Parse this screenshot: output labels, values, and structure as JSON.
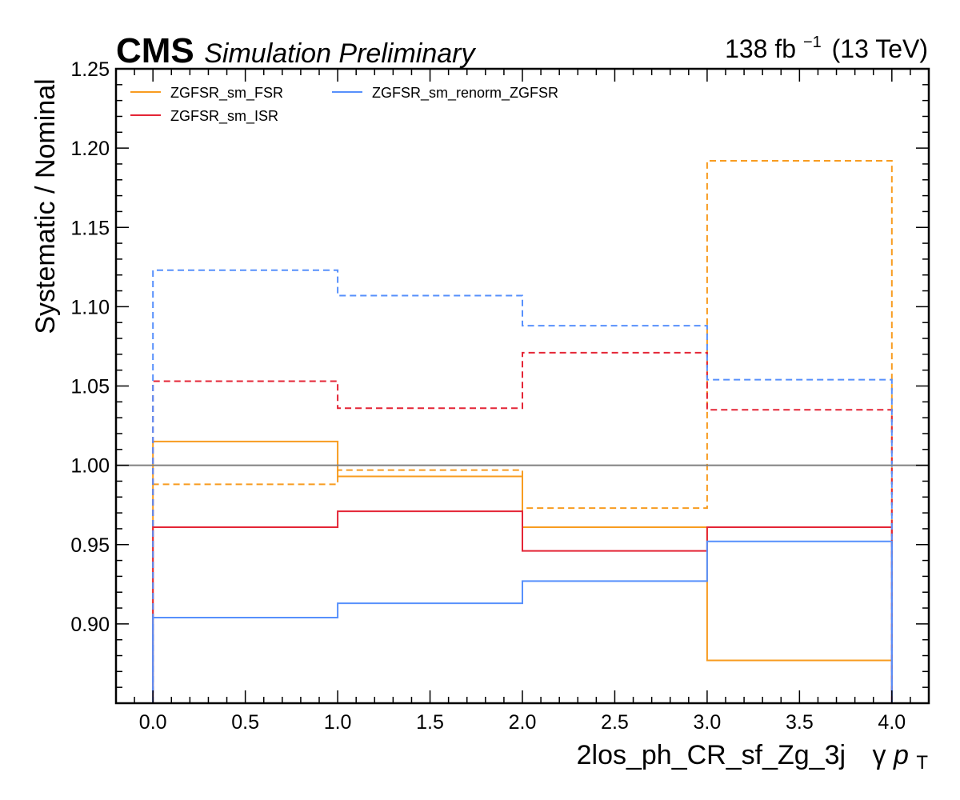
{
  "header": {
    "experiment": "CMS",
    "status": "Simulation Preliminary",
    "lumi_value": "138 fb",
    "lumi_exponent": "−1",
    "energy": "(13 TeV)"
  },
  "chart_data": {
    "type": "step",
    "title": "",
    "xlabel_main": "2los_ph_CR_sf_Zg_3j",
    "xlabel_var_prefix": "γ",
    "xlabel_var": "p",
    "xlabel_var_sub": "T",
    "ylabel": "Systematic / Nominal",
    "xlim": [
      -0.2,
      4.2
    ],
    "ylim": [
      0.85,
      1.25
    ],
    "xticks": [
      0.0,
      0.5,
      1.0,
      1.5,
      2.0,
      2.5,
      3.0,
      3.5,
      4.0
    ],
    "xtick_labels": [
      "0.0",
      "0.5",
      "1.0",
      "1.5",
      "2.0",
      "2.5",
      "3.0",
      "3.5",
      "4.0"
    ],
    "yticks": [
      0.9,
      0.95,
      1.0,
      1.05,
      1.1,
      1.15,
      1.2,
      1.25
    ],
    "ytick_labels": [
      "0.90",
      "0.95",
      "1.00",
      "1.05",
      "1.10",
      "1.15",
      "1.20",
      "1.25"
    ],
    "bin_edges": [
      0,
      1,
      2,
      3,
      4
    ],
    "reference_line": 1.0,
    "reference_color": "#808080",
    "legend_position": "top-left",
    "series": [
      {
        "name": "ZGFSR_sm_FSR",
        "color": "#f89c20",
        "variation": "up",
        "values": [
          0.988,
          0.997,
          0.973,
          1.192
        ]
      },
      {
        "name": "ZGFSR_sm_FSR",
        "color": "#f89c20",
        "variation": "down",
        "values": [
          1.015,
          0.993,
          0.961,
          0.877
        ]
      },
      {
        "name": "ZGFSR_sm_ISR",
        "color": "#e42536",
        "variation": "up",
        "values": [
          1.053,
          1.036,
          1.071,
          1.035
        ]
      },
      {
        "name": "ZGFSR_sm_ISR",
        "color": "#e42536",
        "variation": "down",
        "values": [
          0.961,
          0.971,
          0.946,
          0.961
        ]
      },
      {
        "name": "ZGFSR_sm_renorm_ZGFSR",
        "color": "#5790fc",
        "variation": "up",
        "values": [
          1.123,
          1.107,
          1.088,
          1.054
        ]
      },
      {
        "name": "ZGFSR_sm_renorm_ZGFSR",
        "color": "#5790fc",
        "variation": "down",
        "values": [
          0.904,
          0.913,
          0.927,
          0.952
        ]
      }
    ],
    "legend": [
      {
        "label": "ZGFSR_sm_FSR",
        "color": "#f89c20"
      },
      {
        "label": "ZGFSR_sm_renorm_ZGFSR",
        "color": "#5790fc"
      },
      {
        "label": "ZGFSR_sm_ISR",
        "color": "#e42536"
      }
    ]
  }
}
